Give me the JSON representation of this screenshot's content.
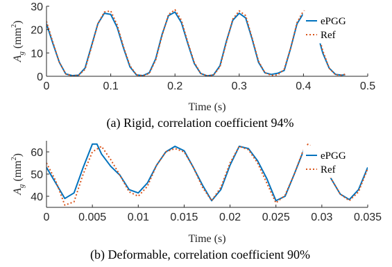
{
  "chart_data": [
    {
      "type": "line",
      "caption": "(a) Rigid, correlation coefficient 94%",
      "xlabel": "Time (s)",
      "ylabel_main": "A",
      "ylabel_sub": "g",
      "ylabel_unit": "(mm",
      "ylabel_exp": "2",
      "ylabel_close": ")",
      "xlim": [
        0,
        0.5
      ],
      "ylim": [
        0,
        30
      ],
      "xticks": [
        0,
        0.1,
        0.2,
        0.3,
        0.4,
        0.5
      ],
      "xtick_labels": [
        "0",
        "0.1",
        "0.2",
        "0.3",
        "0.4",
        "0.5"
      ],
      "yticks": [
        0,
        10,
        20,
        30
      ],
      "ytick_labels": [
        "0",
        "10",
        "20",
        "30"
      ],
      "legend_position": "top-right",
      "grid": false,
      "series": [
        {
          "name": "ePGG",
          "color": "#0072BD",
          "style": "solid",
          "points": [
            [
              0,
              22.5
            ],
            [
              0.01,
              14
            ],
            [
              0.02,
              6
            ],
            [
              0.03,
              1
            ],
            [
              0.04,
              0.3
            ],
            [
              0.05,
              0.5
            ],
            [
              0.06,
              3.5
            ],
            [
              0.07,
              13
            ],
            [
              0.08,
              22.5
            ],
            [
              0.09,
              27
            ],
            [
              0.1,
              26.5
            ],
            [
              0.11,
              21
            ],
            [
              0.12,
              12
            ],
            [
              0.13,
              4
            ],
            [
              0.14,
              0.6
            ],
            [
              0.15,
              0.3
            ],
            [
              0.16,
              1.5
            ],
            [
              0.17,
              7.5
            ],
            [
              0.18,
              18
            ],
            [
              0.19,
              26
            ],
            [
              0.2,
              27.5
            ],
            [
              0.21,
              23
            ],
            [
              0.22,
              14
            ],
            [
              0.23,
              5.5
            ],
            [
              0.24,
              1.2
            ],
            [
              0.25,
              0.2
            ],
            [
              0.26,
              0.6
            ],
            [
              0.27,
              4.5
            ],
            [
              0.28,
              15
            ],
            [
              0.29,
              24
            ],
            [
              0.3,
              27
            ],
            [
              0.31,
              25
            ],
            [
              0.32,
              16
            ],
            [
              0.33,
              6
            ],
            [
              0.34,
              1.5
            ],
            [
              0.35,
              0.8
            ],
            [
              0.36,
              1.3
            ],
            [
              0.37,
              2.5
            ],
            [
              0.38,
              12
            ],
            [
              0.39,
              22.5
            ],
            [
              0.4,
              27
            ],
            [
              0.41,
              26.5
            ],
            [
              0.42,
              20
            ],
            [
              0.43,
              10
            ],
            [
              0.44,
              3.5
            ],
            [
              0.45,
              0.8
            ],
            [
              0.46,
              0.5
            ],
            [
              0.465,
              0.7
            ]
          ]
        },
        {
          "name": "Ref",
          "color": "#D95319",
          "style": "dotted",
          "points": [
            [
              0,
              23.5
            ],
            [
              0.01,
              14.5
            ],
            [
              0.02,
              6
            ],
            [
              0.03,
              1
            ],
            [
              0.04,
              0.2
            ],
            [
              0.05,
              0.4
            ],
            [
              0.06,
              3
            ],
            [
              0.07,
              12.5
            ],
            [
              0.08,
              22.5
            ],
            [
              0.09,
              27.5
            ],
            [
              0.1,
              28
            ],
            [
              0.11,
              22
            ],
            [
              0.12,
              12.5
            ],
            [
              0.13,
              4.5
            ],
            [
              0.14,
              0.6
            ],
            [
              0.15,
              0.2
            ],
            [
              0.16,
              1.2
            ],
            [
              0.17,
              7
            ],
            [
              0.18,
              17.5
            ],
            [
              0.19,
              26.5
            ],
            [
              0.2,
              28.5
            ],
            [
              0.21,
              24
            ],
            [
              0.22,
              14.5
            ],
            [
              0.23,
              6
            ],
            [
              0.24,
              1.2
            ],
            [
              0.25,
              0.2
            ],
            [
              0.26,
              0.5
            ],
            [
              0.27,
              4
            ],
            [
              0.28,
              14.5
            ],
            [
              0.29,
              24.5
            ],
            [
              0.3,
              28
            ],
            [
              0.31,
              26
            ],
            [
              0.32,
              16.5
            ],
            [
              0.33,
              6.5
            ],
            [
              0.34,
              1.5
            ],
            [
              0.35,
              0.4
            ],
            [
              0.36,
              0.6
            ],
            [
              0.37,
              3
            ],
            [
              0.38,
              12
            ],
            [
              0.39,
              23
            ],
            [
              0.4,
              28
            ],
            [
              0.41,
              27.5
            ],
            [
              0.42,
              21
            ],
            [
              0.43,
              11
            ],
            [
              0.44,
              3.5
            ],
            [
              0.45,
              0.6
            ],
            [
              0.46,
              0.5
            ],
            [
              0.465,
              0.9
            ]
          ]
        }
      ]
    },
    {
      "type": "line",
      "caption": "(b) Deformable, correlation coefficient 90%",
      "xlabel": "Time (s)",
      "ylabel_main": "A",
      "ylabel_sub": "g",
      "ylabel_unit": "(mm",
      "ylabel_exp": "2",
      "ylabel_close": ")",
      "xlim": [
        0,
        0.035
      ],
      "ylim": [
        35,
        65
      ],
      "xticks": [
        0,
        0.005,
        0.01,
        0.015,
        0.02,
        0.025,
        0.03,
        0.035
      ],
      "xtick_labels": [
        "0",
        "0.005",
        "0.01",
        "0.015",
        "0.02",
        "0.025",
        "0.03",
        "0.035"
      ],
      "yticks": [
        40,
        50,
        60
      ],
      "ytick_labels": [
        "40",
        "50",
        "60"
      ],
      "legend_position": "top-right",
      "grid": false,
      "series": [
        {
          "name": "ePGG",
          "color": "#0072BD",
          "style": "solid",
          "points": [
            [
              0,
              53
            ],
            [
              0.001,
              46
            ],
            [
              0.002,
              39
            ],
            [
              0.003,
              41.5
            ],
            [
              0.004,
              53
            ],
            [
              0.005,
              63.5
            ],
            [
              0.0055,
              63.5
            ],
            [
              0.006,
              59
            ],
            [
              0.007,
              53.5
            ],
            [
              0.008,
              49.5
            ],
            [
              0.009,
              43
            ],
            [
              0.01,
              41.5
            ],
            [
              0.011,
              46
            ],
            [
              0.012,
              54
            ],
            [
              0.013,
              60
            ],
            [
              0.014,
              62.5
            ],
            [
              0.015,
              60.5
            ],
            [
              0.016,
              53
            ],
            [
              0.017,
              45
            ],
            [
              0.018,
              38
            ],
            [
              0.019,
              43
            ],
            [
              0.02,
              54
            ],
            [
              0.021,
              62.5
            ],
            [
              0.022,
              61.5
            ],
            [
              0.023,
              56
            ],
            [
              0.024,
              48
            ],
            [
              0.025,
              38
            ],
            [
              0.026,
              40
            ],
            [
              0.027,
              50
            ],
            [
              0.028,
              60.5
            ],
            [
              0.0285,
              60.5
            ],
            [
              0.029,
              59
            ],
            [
              0.03,
              55
            ],
            [
              0.031,
              48
            ],
            [
              0.032,
              41
            ],
            [
              0.033,
              38.5
            ],
            [
              0.034,
              43
            ],
            [
              0.035,
              53
            ]
          ]
        },
        {
          "name": "Ref",
          "color": "#D95319",
          "style": "dotted",
          "points": [
            [
              0,
              55
            ],
            [
              0.001,
              47
            ],
            [
              0.002,
              36
            ],
            [
              0.003,
              37.5
            ],
            [
              0.004,
              50
            ],
            [
              0.005,
              60
            ],
            [
              0.006,
              62.5
            ],
            [
              0.007,
              56.5
            ],
            [
              0.008,
              49.5
            ],
            [
              0.009,
              42
            ],
            [
              0.01,
              40
            ],
            [
              0.011,
              44.5
            ],
            [
              0.012,
              54
            ],
            [
              0.013,
              60
            ],
            [
              0.014,
              61.5
            ],
            [
              0.015,
              60
            ],
            [
              0.016,
              53
            ],
            [
              0.017,
              44
            ],
            [
              0.018,
              38
            ],
            [
              0.019,
              44
            ],
            [
              0.02,
              55
            ],
            [
              0.021,
              62.5
            ],
            [
              0.022,
              61
            ],
            [
              0.023,
              55
            ],
            [
              0.024,
              46
            ],
            [
              0.025,
              37
            ],
            [
              0.026,
              40.5
            ],
            [
              0.027,
              50
            ],
            [
              0.028,
              61
            ],
            [
              0.0285,
              63.5
            ],
            [
              0.029,
              62
            ],
            [
              0.03,
              56.5
            ],
            [
              0.031,
              48
            ],
            [
              0.032,
              41
            ],
            [
              0.033,
              38
            ],
            [
              0.034,
              42
            ],
            [
              0.035,
              52.5
            ]
          ]
        }
      ]
    }
  ]
}
